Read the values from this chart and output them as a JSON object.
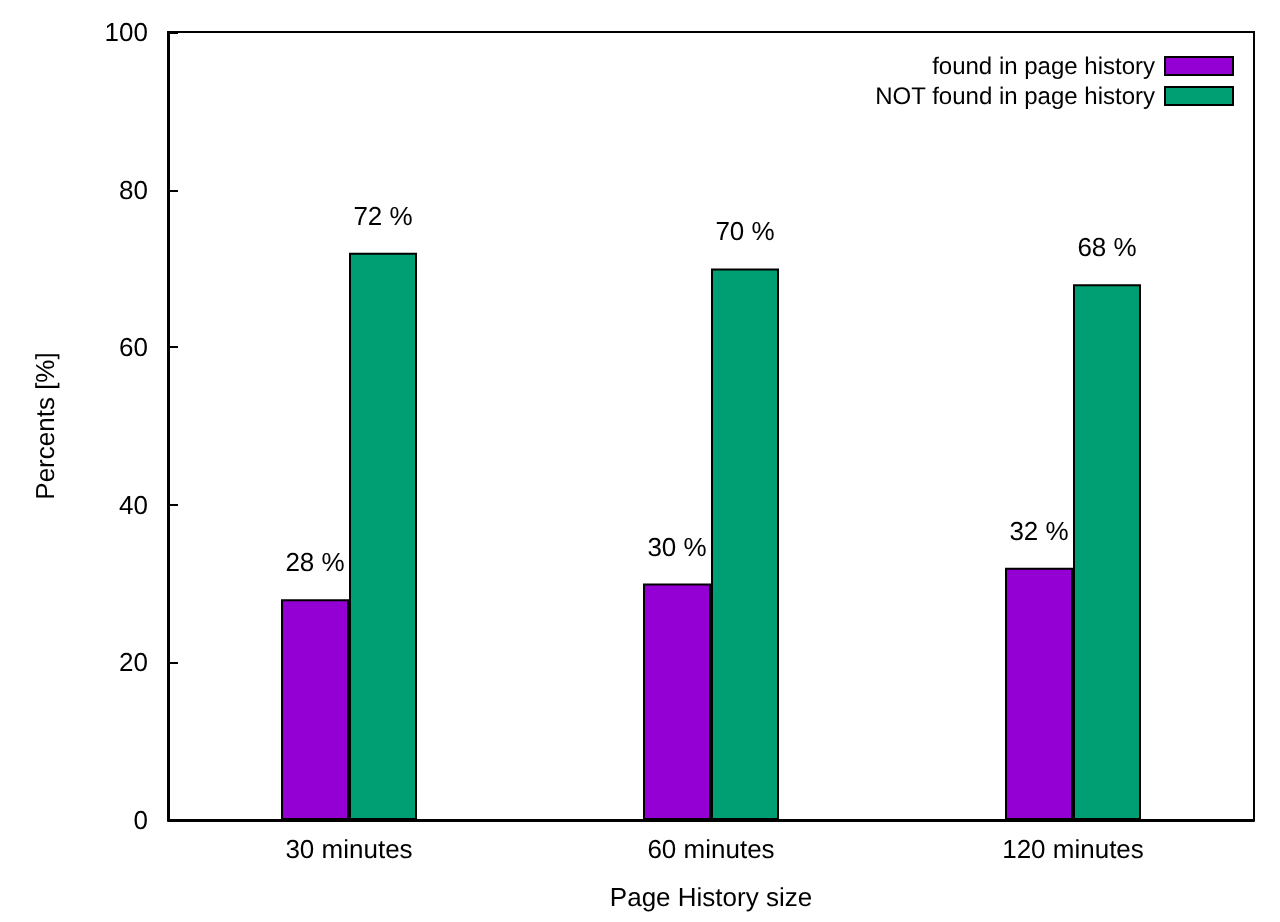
{
  "chart_data": {
    "type": "bar",
    "xlabel": "Page History size",
    "ylabel": "Percents [%]",
    "categories": [
      "30 minutes",
      "60 minutes",
      "120 minutes"
    ],
    "series": [
      {
        "name": "found in page history",
        "color": "#9400d3",
        "values": [
          28,
          30,
          32
        ],
        "value_labels": [
          "28 %",
          "30 %",
          "32 %"
        ]
      },
      {
        "name": "NOT found in page history",
        "color": "#009e73",
        "values": [
          72,
          70,
          68
        ],
        "value_labels": [
          "72 %",
          "70 %",
          "68 %"
        ]
      }
    ],
    "ylim": [
      0,
      100
    ],
    "yticks": [
      0,
      20,
      40,
      60,
      80,
      100
    ],
    "grid": false,
    "legend": "top right"
  }
}
